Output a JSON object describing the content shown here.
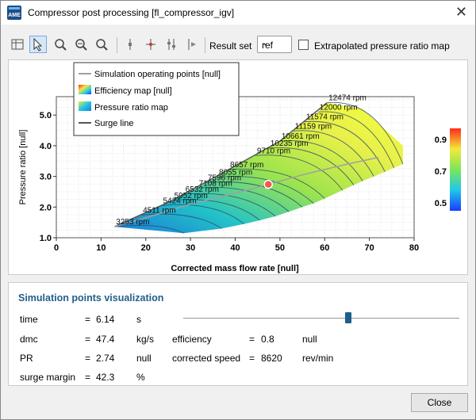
{
  "window": {
    "title": "Compressor post processing [fl_compressor_igv]",
    "app_icon_text": "AME"
  },
  "toolbar": {
    "icons": [
      "table-icon",
      "pointer-icon",
      "zoom-rect-icon",
      "zoom-out-icon",
      "zoom-fit-icon",
      "vertical-line-icon",
      "crosshair-icon",
      "adjust-icon",
      "next-point-icon"
    ],
    "result_set_label": "Result set",
    "result_set_value": "ref",
    "extrapolated_label": "Extrapolated pressure ratio map",
    "extrapolated_checked": false
  },
  "legend": {
    "items": [
      {
        "label": "Simulation operating points [null]",
        "kind": "line",
        "color": "#a0a0a0"
      },
      {
        "label": "Efficiency map [null]",
        "kind": "gradient"
      },
      {
        "label": "Pressure ratio map",
        "kind": "gradient2"
      },
      {
        "label": "Surge line",
        "kind": "line",
        "color": "#555555"
      }
    ]
  },
  "chart_data": {
    "type": "scatter",
    "xlabel": "Corrected mass flow rate [null]",
    "ylabel": "Pressure ratio [null]",
    "xlim": [
      0,
      80
    ],
    "ylim": [
      1.0,
      5.6
    ],
    "xticks": [
      0,
      10,
      20,
      30,
      40,
      50,
      60,
      70,
      80
    ],
    "yticks": [
      1.0,
      2.0,
      3.0,
      4.0,
      5.0
    ],
    "grid": true,
    "legend_position": "top-left",
    "speed_lines": [
      {
        "label": "3253 rpm",
        "surge": [
          13.0,
          1.36
        ],
        "choke": [
          28.5,
          1.15
        ]
      },
      {
        "label": "4511 rpm",
        "surge": [
          19.0,
          1.74
        ],
        "choke": [
          37.0,
          1.3
        ]
      },
      {
        "label": "5424 rpm",
        "surge": [
          23.5,
          2.05
        ],
        "choke": [
          42.0,
          1.45
        ]
      },
      {
        "label": "5952 rpm",
        "surge": [
          26.0,
          2.22
        ],
        "choke": [
          45.5,
          1.57
        ]
      },
      {
        "label": "6532 rpm",
        "surge": [
          28.5,
          2.42
        ],
        "choke": [
          49.0,
          1.7
        ]
      },
      {
        "label": "7108 rpm",
        "surge": [
          31.5,
          2.62
        ],
        "choke": [
          52.0,
          1.85
        ]
      },
      {
        "label": "7596 rpm",
        "surge": [
          33.5,
          2.8
        ],
        "choke": [
          55.0,
          2.0
        ]
      },
      {
        "label": "8055 rpm",
        "surge": [
          36.0,
          2.98
        ],
        "choke": [
          57.5,
          2.12
        ]
      },
      {
        "label": "8657 rpm",
        "surge": [
          38.5,
          3.22
        ],
        "choke": [
          60.0,
          2.28
        ]
      },
      {
        "label": "9710 rpm",
        "surge": [
          44.5,
          3.68
        ],
        "choke": [
          64.0,
          2.55
        ]
      },
      {
        "label": "10235 rpm",
        "surge": [
          47.5,
          3.92
        ],
        "choke": [
          66.5,
          2.72
        ]
      },
      {
        "label": "10661 rpm",
        "surge": [
          50.0,
          4.15
        ],
        "choke": [
          68.5,
          2.85
        ]
      },
      {
        "label": "11159 rpm",
        "surge": [
          53.0,
          4.48
        ],
        "choke": [
          71.0,
          3.0
        ]
      },
      {
        "label": "11574 rpm",
        "surge": [
          55.5,
          4.78
        ],
        "choke": [
          73.5,
          3.15
        ]
      },
      {
        "label": "12000 rpm",
        "surge": [
          58.5,
          5.1
        ],
        "choke": [
          75.5,
          3.28
        ]
      },
      {
        "label": "12474 rpm",
        "surge": [
          60.5,
          5.4
        ],
        "choke": [
          77.5,
          3.4
        ]
      }
    ],
    "surge_line": [
      [
        13.0,
        1.36
      ],
      [
        26.0,
        2.22
      ],
      [
        38.5,
        3.22
      ],
      [
        50.0,
        4.15
      ],
      [
        60.5,
        5.4
      ]
    ],
    "operating_points": [
      [
        13.0,
        1.36
      ],
      [
        20.0,
        1.65
      ],
      [
        30.0,
        2.1
      ],
      [
        40.0,
        2.45
      ],
      [
        47.4,
        2.74
      ],
      [
        55.0,
        3.05
      ],
      [
        65.0,
        3.4
      ],
      [
        72.0,
        3.62
      ]
    ],
    "current_point": [
      47.4,
      2.74
    ],
    "colorbar": {
      "ticks": [
        0.5,
        0.7,
        0.9
      ],
      "range": [
        0.45,
        0.97
      ]
    }
  },
  "sim_panel": {
    "title": "Simulation points visualization",
    "time": {
      "label": "time",
      "eq": "=",
      "value": "6.14",
      "unit": "s"
    },
    "slider_fraction": 0.6,
    "dmc": {
      "label": "dmc",
      "eq": "=",
      "value": "47.4",
      "unit": "kg/s"
    },
    "efficiency": {
      "label": "efficiency",
      "eq": "=",
      "value": "0.8",
      "unit": "null"
    },
    "pr": {
      "label": "PR",
      "eq": "=",
      "value": "2.74",
      "unit": "null"
    },
    "corrected_speed": {
      "label": "corrected speed",
      "eq": "=",
      "value": "8620",
      "unit": "rev/min"
    },
    "surge_margin": {
      "label": "surge margin",
      "eq": "=",
      "value": "42.3",
      "unit": "%"
    }
  },
  "buttons": {
    "close": "Close"
  }
}
